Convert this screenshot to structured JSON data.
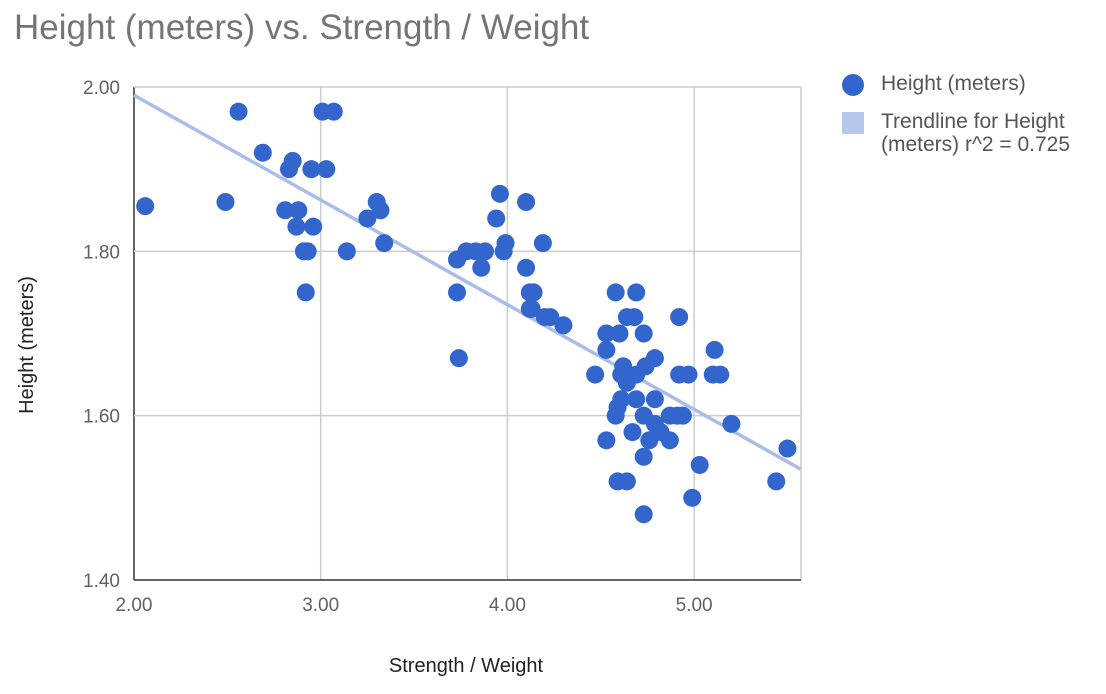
{
  "chart_data": {
    "type": "scatter",
    "title": "Height (meters) vs. Strength / Weight",
    "xlabel": "Strength / Weight",
    "ylabel": "Height (meters)",
    "xlim": [
      2.0,
      5.57
    ],
    "ylim": [
      1.4,
      2.0
    ],
    "x_ticks": [
      "2.00",
      "3.00",
      "4.00",
      "5.00"
    ],
    "y_ticks": [
      "1.40",
      "1.60",
      "1.80",
      "2.00"
    ],
    "grid": true,
    "legend_position": "right",
    "colors": {
      "points": "#3366cc",
      "trendline": "#a9bde8",
      "title": "#757575"
    },
    "series": [
      {
        "name": "Height (meters)",
        "points": [
          [
            2.06,
            1.855
          ],
          [
            2.49,
            1.86
          ],
          [
            2.56,
            1.97
          ],
          [
            2.69,
            1.92
          ],
          [
            2.81,
            1.85
          ],
          [
            2.83,
            1.9
          ],
          [
            2.85,
            1.91
          ],
          [
            2.87,
            1.83
          ],
          [
            2.88,
            1.85
          ],
          [
            2.91,
            1.8
          ],
          [
            2.92,
            1.75
          ],
          [
            2.93,
            1.8
          ],
          [
            2.95,
            1.9
          ],
          [
            2.96,
            1.83
          ],
          [
            3.01,
            1.97
          ],
          [
            3.03,
            1.9
          ],
          [
            3.07,
            1.97
          ],
          [
            3.14,
            1.8
          ],
          [
            3.25,
            1.84
          ],
          [
            3.3,
            1.86
          ],
          [
            3.32,
            1.85
          ],
          [
            3.34,
            1.81
          ],
          [
            3.73,
            1.79
          ],
          [
            3.73,
            1.75
          ],
          [
            3.74,
            1.67
          ],
          [
            3.78,
            1.8
          ],
          [
            3.83,
            1.8
          ],
          [
            3.86,
            1.78
          ],
          [
            3.88,
            1.8
          ],
          [
            3.94,
            1.84
          ],
          [
            3.96,
            1.87
          ],
          [
            3.98,
            1.8
          ],
          [
            3.99,
            1.81
          ],
          [
            4.1,
            1.86
          ],
          [
            4.1,
            1.78
          ],
          [
            4.12,
            1.75
          ],
          [
            4.12,
            1.73
          ],
          [
            4.14,
            1.75
          ],
          [
            4.13,
            1.73
          ],
          [
            4.19,
            1.81
          ],
          [
            4.2,
            1.72
          ],
          [
            4.23,
            1.72
          ],
          [
            4.3,
            1.71
          ],
          [
            4.58,
            1.75
          ],
          [
            4.69,
            1.75
          ],
          [
            4.64,
            1.72
          ],
          [
            4.68,
            1.72
          ],
          [
            4.92,
            1.72
          ],
          [
            4.53,
            1.7
          ],
          [
            4.6,
            1.7
          ],
          [
            4.73,
            1.7
          ],
          [
            4.53,
            1.68
          ],
          [
            5.11,
            1.68
          ],
          [
            4.79,
            1.67
          ],
          [
            4.62,
            1.66
          ],
          [
            4.74,
            1.66
          ],
          [
            4.47,
            1.65
          ],
          [
            4.61,
            1.65
          ],
          [
            4.69,
            1.65
          ],
          [
            4.92,
            1.65
          ],
          [
            4.97,
            1.65
          ],
          [
            5.1,
            1.65
          ],
          [
            5.14,
            1.65
          ],
          [
            4.64,
            1.64
          ],
          [
            4.61,
            1.62
          ],
          [
            4.69,
            1.62
          ],
          [
            4.79,
            1.62
          ],
          [
            4.59,
            1.61
          ],
          [
            4.58,
            1.6
          ],
          [
            4.73,
            1.6
          ],
          [
            4.87,
            1.6
          ],
          [
            4.91,
            1.6
          ],
          [
            4.94,
            1.6
          ],
          [
            5.2,
            1.59
          ],
          [
            4.79,
            1.59
          ],
          [
            4.67,
            1.58
          ],
          [
            4.82,
            1.58
          ],
          [
            4.53,
            1.57
          ],
          [
            4.76,
            1.57
          ],
          [
            4.87,
            1.57
          ],
          [
            5.5,
            1.56
          ],
          [
            4.73,
            1.55
          ],
          [
            5.03,
            1.54
          ],
          [
            4.59,
            1.52
          ],
          [
            4.64,
            1.52
          ],
          [
            5.44,
            1.52
          ],
          [
            4.99,
            1.5
          ],
          [
            4.73,
            1.48
          ]
        ]
      }
    ],
    "trendline": {
      "name": "Trendline for Height (meters) r^2 = 0.725",
      "start": [
        2.0,
        1.99
      ],
      "end": [
        5.57,
        1.535
      ]
    }
  }
}
